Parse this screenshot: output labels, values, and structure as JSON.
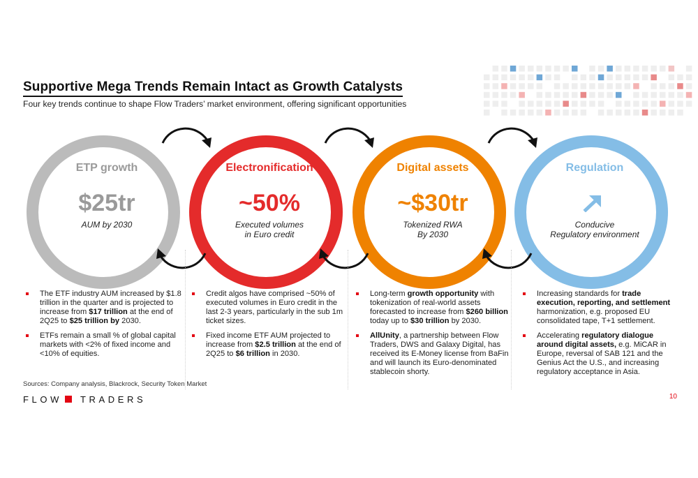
{
  "header": {
    "title": "Supportive Mega Trends Remain Intact as Growth Catalysts",
    "subtitle": "Four key trends continue to shape Flow Traders’ market environment, offering significant opportunities"
  },
  "colors": {
    "grey": "#bbbbbb",
    "red": "#e42b2b",
    "orange": "#ef8200",
    "blue": "#84bde6",
    "brand_red": "#e30613"
  },
  "trends": [
    {
      "name": "ETP growth",
      "value": "$25tr",
      "desc_line1": "AUM by 2030",
      "desc_line2": "",
      "bullets": [
        [
          {
            "t": "The ETF industry AUM increased by $1.8 trillion in the quarter and is projected to increase from ",
            "b": false
          },
          {
            "t": "$17 trillion",
            "b": true
          },
          {
            "t": " at the end of 2Q25 to ",
            "b": false
          },
          {
            "t": "$25 trillion by",
            "b": true
          },
          {
            "t": " 2030.",
            "b": false
          }
        ],
        [
          {
            "t": "ETFs remain a small % of global capital markets with <2% of fixed income and <10% of equities.",
            "b": false
          }
        ]
      ]
    },
    {
      "name": "Electronification",
      "value": "~50%",
      "desc_line1": "Executed volumes",
      "desc_line2": "in Euro credit",
      "bullets": [
        [
          {
            "t": "Credit algos have comprised ~50% of executed volumes in Euro credit in the last 2-3 years, particularly in the sub 1m ticket sizes.",
            "b": false
          }
        ],
        [
          {
            "t": "Fixed income ETF AUM projected to increase from ",
            "b": false
          },
          {
            "t": "$2.5 trillion",
            "b": true
          },
          {
            "t": " at the end of 2Q25 to ",
            "b": false
          },
          {
            "t": "$6 trillion",
            "b": true
          },
          {
            "t": " in 2030.",
            "b": false
          }
        ]
      ]
    },
    {
      "name": "Digital assets",
      "value": "~$30tr",
      "desc_line1": "Tokenized RWA",
      "desc_line2": "By 2030",
      "bullets": [
        [
          {
            "t": "Long-term ",
            "b": false
          },
          {
            "t": "growth opportunity",
            "b": true
          },
          {
            "t": " with tokenization of real-world assets forecasted to increase from ",
            "b": false
          },
          {
            "t": "$260 billion",
            "b": true
          },
          {
            "t": " today up to ",
            "b": false
          },
          {
            "t": "$30 trillion",
            "b": true
          },
          {
            "t": " by 2030.",
            "b": false
          }
        ],
        [
          {
            "t": "AllUnity",
            "b": true
          },
          {
            "t": ", a partnership between Flow Traders, DWS and Galaxy Digital, has received its E-Money license from BaFin and will launch its Euro-denominated stablecoin shorty.",
            "b": false
          }
        ]
      ]
    },
    {
      "name": "Regulation",
      "value": "",
      "icon": "arrow-up-right-icon",
      "desc_line1": "Conducive",
      "desc_line2": "Regulatory environment",
      "bullets": [
        [
          {
            "t": "Increasing standards for ",
            "b": false
          },
          {
            "t": "trade execution, reporting, and settlement",
            "b": true
          },
          {
            "t": " harmonization, e.g. proposed EU consolidated tape, T+1 settlement.",
            "b": false
          }
        ],
        [
          {
            "t": "Accelerating ",
            "b": false
          },
          {
            "t": "regulatory dialogue around digital assets,",
            "b": true
          },
          {
            "t": " e.g. MiCAR in Europe, reversal of SAB 121 and the Genius Act the U.S., and increasing regulatory acceptance in Asia.",
            "b": false
          }
        ]
      ]
    }
  ],
  "footer": {
    "sources": "Sources: Company analysis, Blackrock, Security Token Market",
    "logo_left": "FLOW",
    "logo_right": "TRADERS",
    "page_number": "10"
  }
}
